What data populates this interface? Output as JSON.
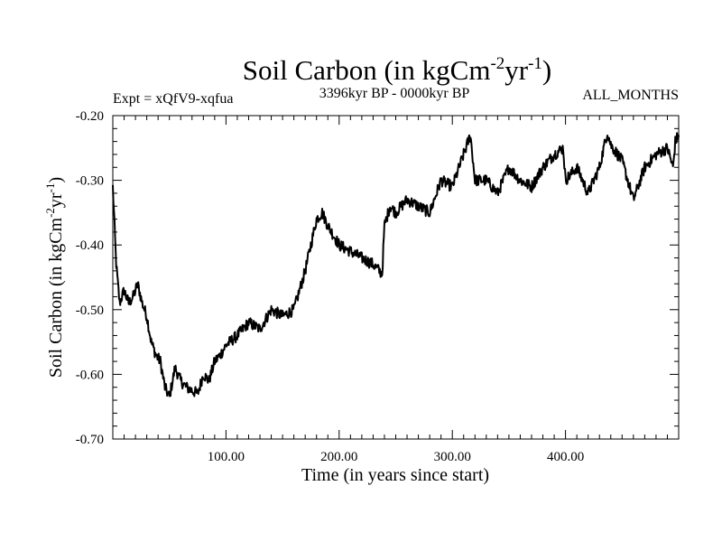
{
  "chart_data": {
    "type": "line",
    "title": {
      "base": "Soil Carbon (in kgCm",
      "sup1": "-2",
      "mid": "yr",
      "sup2": "-1",
      "end": ")"
    },
    "subtitle_left": "Expt = xQfV9-xqfua",
    "subtitle_center": "3396kyr BP - 0000kyr BP",
    "subtitle_right": "ALL_MONTHS",
    "xlabel": "Time (in years since start)",
    "ylabel": {
      "base": "Soil Carbon (in kgCm",
      "sup1": "-2",
      "mid": "yr",
      "sup2": "-1",
      "end": ")"
    },
    "xlim": [
      0,
      500
    ],
    "ylim": [
      -0.7,
      -0.2
    ],
    "xticks": [
      100,
      200,
      300,
      400
    ],
    "xtick_labels": [
      "100.00",
      "200.00",
      "300.00",
      "400.00"
    ],
    "yticks": [
      -0.7,
      -0.6,
      -0.5,
      -0.4,
      -0.3,
      -0.2
    ],
    "ytick_labels": [
      "-0.70",
      "-0.60",
      "-0.50",
      "-0.40",
      "-0.30",
      "-0.20"
    ],
    "series": [
      {
        "name": "Soil Carbon",
        "color": "#000000",
        "x": [
          0,
          3,
          6,
          10,
          14,
          18,
          22,
          26,
          30,
          34,
          38,
          42,
          46,
          50,
          55,
          60,
          65,
          70,
          75,
          80,
          85,
          90,
          95,
          100,
          110,
          120,
          130,
          140,
          150,
          160,
          170,
          180,
          185,
          190,
          200,
          210,
          220,
          230,
          238,
          240,
          245,
          250,
          260,
          270,
          280,
          290,
          300,
          310,
          316,
          320,
          330,
          340,
          350,
          360,
          370,
          380,
          390,
          398,
          400,
          410,
          420,
          430,
          437,
          440,
          450,
          455,
          460,
          470,
          480,
          490,
          495,
          497,
          500
        ],
        "y": [
          -0.31,
          -0.43,
          -0.49,
          -0.47,
          -0.49,
          -0.48,
          -0.46,
          -0.49,
          -0.51,
          -0.55,
          -0.57,
          -0.58,
          -0.62,
          -0.635,
          -0.59,
          -0.61,
          -0.62,
          -0.625,
          -0.63,
          -0.6,
          -0.61,
          -0.58,
          -0.57,
          -0.555,
          -0.54,
          -0.52,
          -0.53,
          -0.5,
          -0.51,
          -0.5,
          -0.44,
          -0.36,
          -0.35,
          -0.37,
          -0.4,
          -0.41,
          -0.42,
          -0.43,
          -0.445,
          -0.37,
          -0.34,
          -0.35,
          -0.33,
          -0.34,
          -0.35,
          -0.3,
          -0.31,
          -0.26,
          -0.23,
          -0.3,
          -0.3,
          -0.32,
          -0.28,
          -0.3,
          -0.31,
          -0.28,
          -0.26,
          -0.25,
          -0.3,
          -0.28,
          -0.32,
          -0.28,
          -0.225,
          -0.245,
          -0.27,
          -0.3,
          -0.33,
          -0.28,
          -0.26,
          -0.25,
          -0.28,
          -0.24,
          -0.23
        ]
      }
    ]
  }
}
